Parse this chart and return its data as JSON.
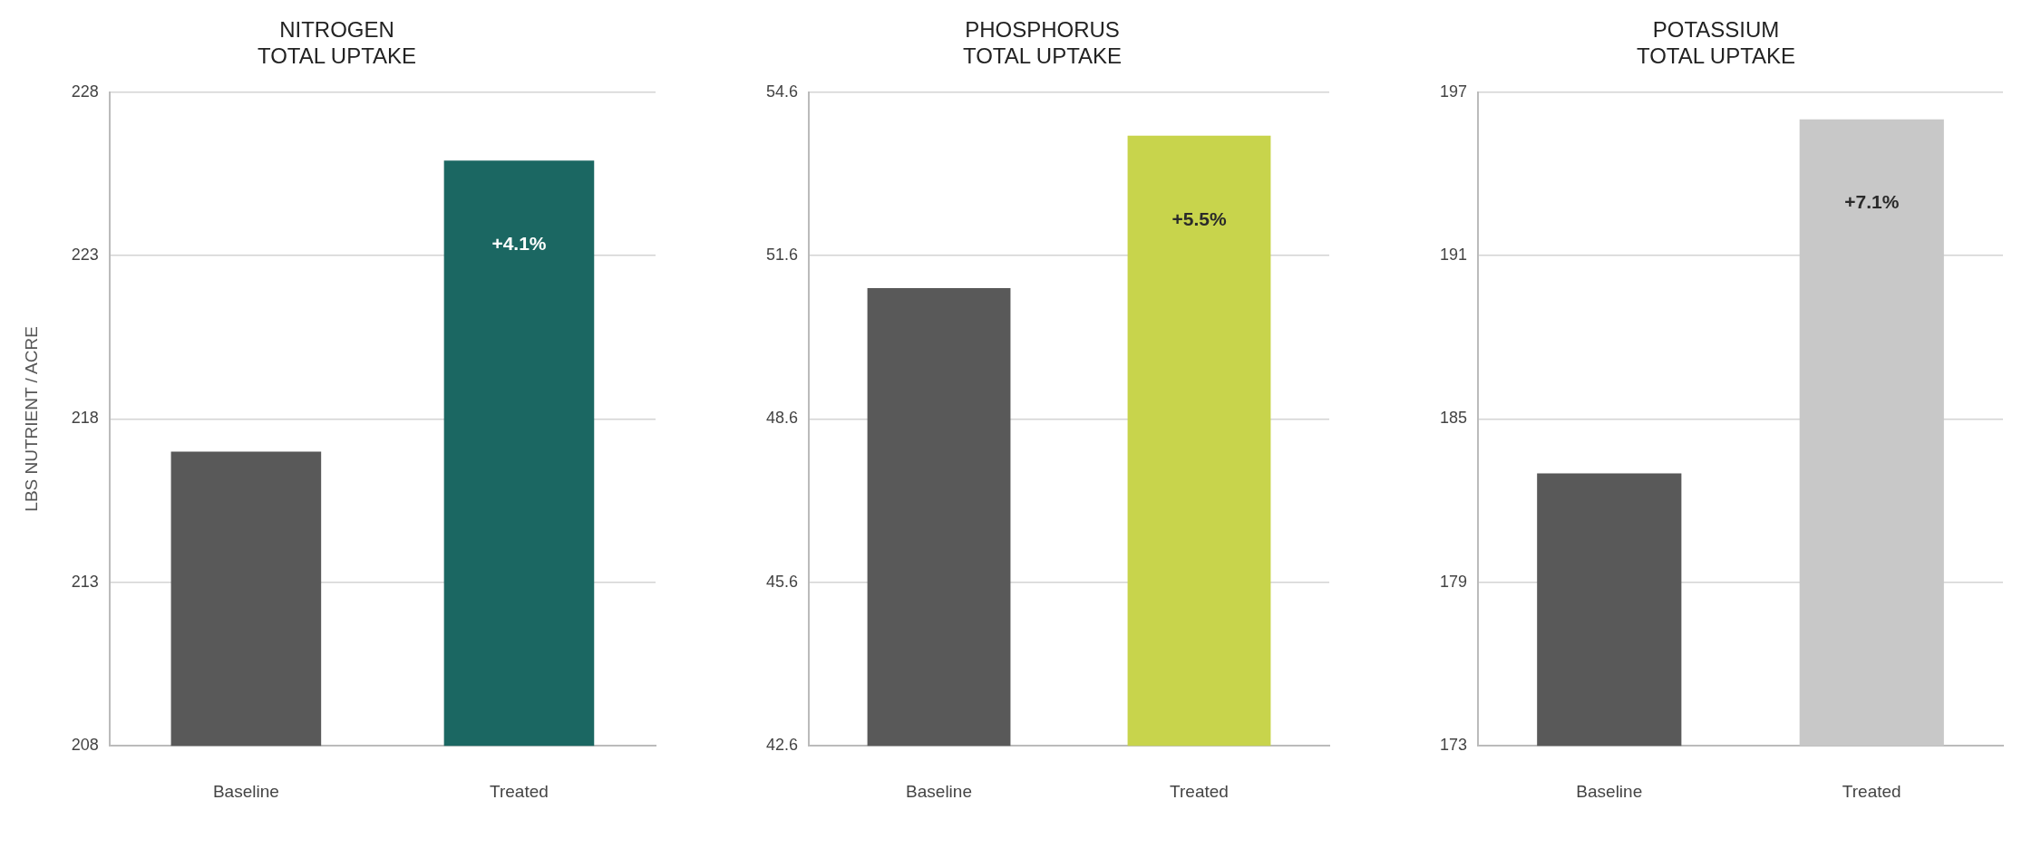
{
  "chart_data": [
    {
      "type": "bar",
      "title": "NITROGEN\nTOTAL UPTAKE",
      "ylabel": "LBS NUTRIENT / ACRE",
      "categories": [
        "Baseline",
        "Treated"
      ],
      "values": [
        217.0,
        225.9
      ],
      "colors": [
        "#595959",
        "#1b6762"
      ],
      "annotations": [
        "+4.1%"
      ],
      "ylim": [
        208,
        228
      ],
      "yticks": [
        208,
        213,
        218,
        223,
        228
      ],
      "grid": "y"
    },
    {
      "type": "bar",
      "title": "PHOSPHORUS\nTOTAL UPTAKE",
      "categories": [
        "Baseline",
        "Treated"
      ],
      "values": [
        51.0,
        53.8
      ],
      "colors": [
        "#595959",
        "#c8d44c"
      ],
      "annotations": [
        "+5.5%"
      ],
      "ylim": [
        42.6,
        54.6
      ],
      "yticks": [
        42.6,
        45.6,
        48.6,
        51.6,
        54.6
      ],
      "grid": "y"
    },
    {
      "type": "bar",
      "title": "POTASSIUM\nTOTAL UPTAKE",
      "categories": [
        "Baseline",
        "Treated"
      ],
      "values": [
        183.0,
        196.0
      ],
      "colors": [
        "#595959",
        "#c8c8c8"
      ],
      "annotations": [
        "+7.1%"
      ],
      "ylim": [
        173,
        197
      ],
      "yticks": [
        173,
        179,
        185,
        191,
        197
      ],
      "grid": "y"
    }
  ]
}
